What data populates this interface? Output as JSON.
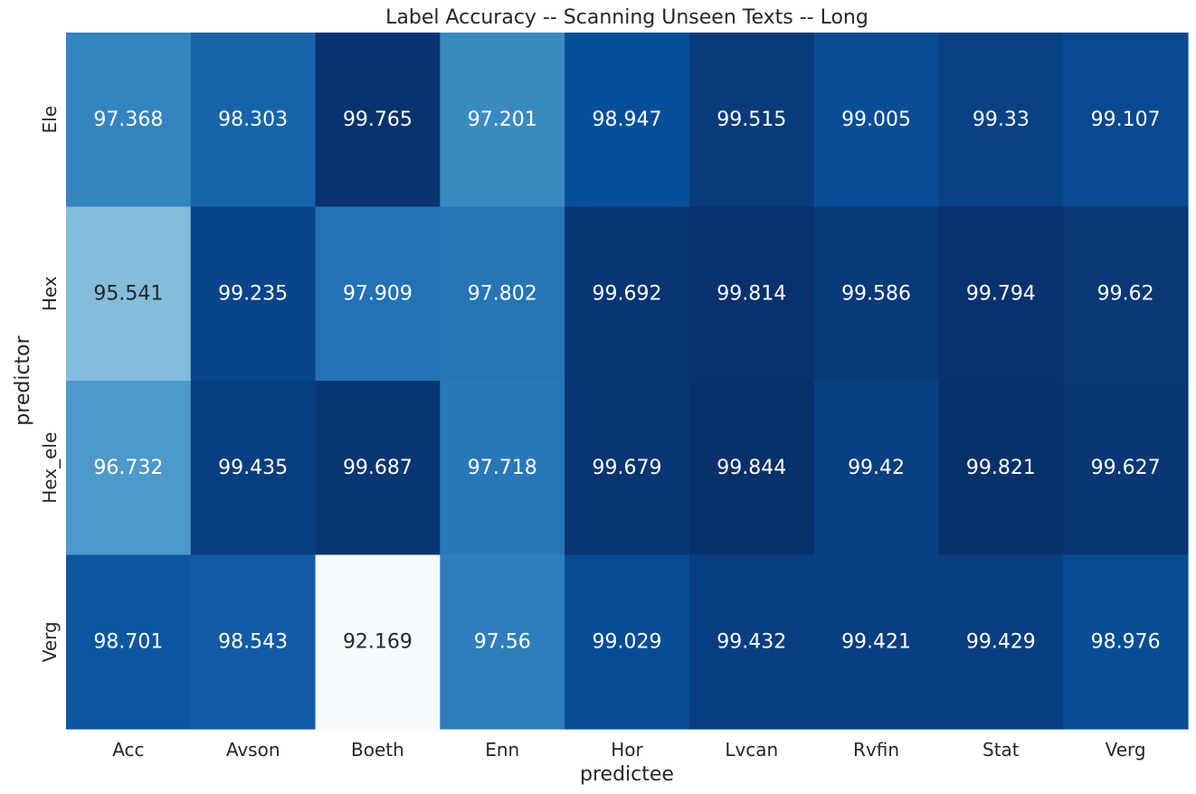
{
  "chart_data": {
    "type": "heatmap",
    "title": "Label Accuracy -- Scanning Unseen Texts -- Long",
    "xlabel": "predictee",
    "ylabel": "predictor",
    "x_categories": [
      "Acc",
      "Avson",
      "Boeth",
      "Enn",
      "Hor",
      "Lvcan",
      "Rvfin",
      "Stat",
      "Verg"
    ],
    "y_categories": [
      "Ele",
      "Hex",
      "Hex_ele",
      "Verg"
    ],
    "values": [
      [
        97.368,
        98.303,
        99.765,
        97.201,
        98.947,
        99.515,
        99.005,
        99.33,
        99.107
      ],
      [
        95.541,
        99.235,
        97.909,
        97.802,
        99.692,
        99.814,
        99.586,
        99.794,
        99.62
      ],
      [
        96.732,
        99.435,
        99.687,
        97.718,
        99.679,
        99.844,
        99.42,
        99.821,
        99.627
      ],
      [
        98.701,
        98.543,
        92.169,
        97.56,
        99.029,
        99.432,
        99.421,
        99.429,
        98.976
      ]
    ],
    "colormap": "Blues",
    "colorbar": false,
    "grid": false
  }
}
